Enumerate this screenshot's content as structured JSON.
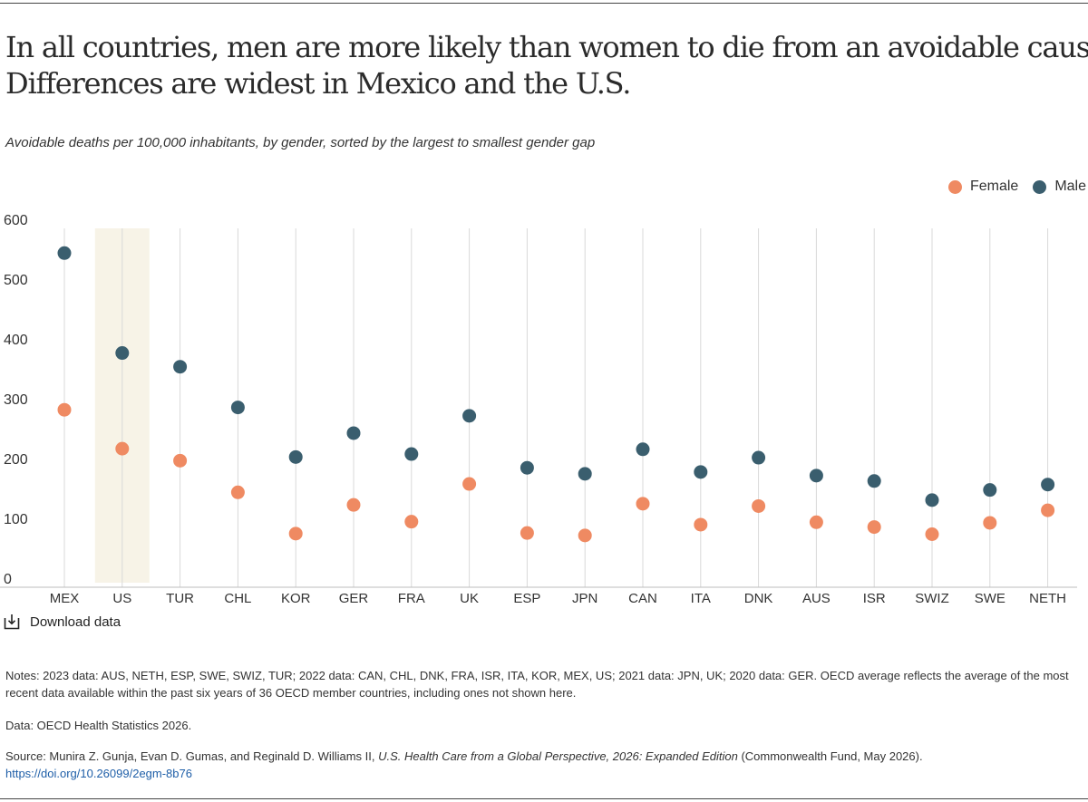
{
  "title_lines": [
    "In all countries, men are more likely than women to die from an avoidable cause.",
    "Differences are widest in Mexico and the U.S."
  ],
  "subtitle": "Avoidable deaths per 100,000 inhabitants, by gender, sorted by the largest to smallest gender gap",
  "legend": {
    "female": "Female",
    "male": "Male"
  },
  "colors": {
    "female": "#ef8a62",
    "male": "#3a5e6e",
    "highlight": "#f7f3e7",
    "grid": "#d9d9d9",
    "axis": "#bdbdbd"
  },
  "chart_data": {
    "type": "scatter",
    "categories": [
      "MEX",
      "US",
      "TUR",
      "CHL",
      "KOR",
      "GER",
      "FRA",
      "UK",
      "ESP",
      "JPN",
      "CAN",
      "ITA",
      "DNK",
      "AUS",
      "ISR",
      "SWIZ",
      "SWE",
      "NETH"
    ],
    "series": [
      {
        "name": "Female",
        "values": [
          283,
          218,
          198,
          145,
          76,
          124,
          96,
          159,
          77,
          73,
          126,
          91,
          122,
          95,
          87,
          75,
          94,
          115
        ]
      },
      {
        "name": "Male",
        "values": [
          545,
          378,
          355,
          287,
          204,
          244,
          209,
          273,
          186,
          176,
          217,
          179,
          203,
          173,
          164,
          132,
          149,
          158
        ]
      }
    ],
    "highlight_category": "US",
    "ylim": [
      0,
      600
    ],
    "yticks": [
      0,
      100,
      200,
      300,
      400,
      500,
      600
    ],
    "xlabel": "",
    "ylabel": "",
    "grid": true,
    "legend_position": "top-right"
  },
  "download_label": "Download data",
  "notes": "Notes: 2023 data: AUS, NETH, ESP, SWE, SWIZ, TUR; 2022 data: CAN, CHL, DNK, FRA, ISR, ITA, KOR, MEX, US; 2021 data: JPN, UK; 2020 data: GER. OECD average reflects the average of the most recent data available within the past six years of 36 OECD member countries, including ones not shown here.",
  "data_source": "Data: OECD Health Statistics 2026.",
  "source": {
    "prefix": "Source: Munira Z. Gunja, Evan D. Gumas, and Reginald D. Williams II, ",
    "title": "U.S. Health Care from a Global Perspective, 2026: Expanded Edition",
    "suffix": " (Commonwealth Fund, May 2026).",
    "doi": "https://doi.org/10.26099/2egm-8b76"
  }
}
